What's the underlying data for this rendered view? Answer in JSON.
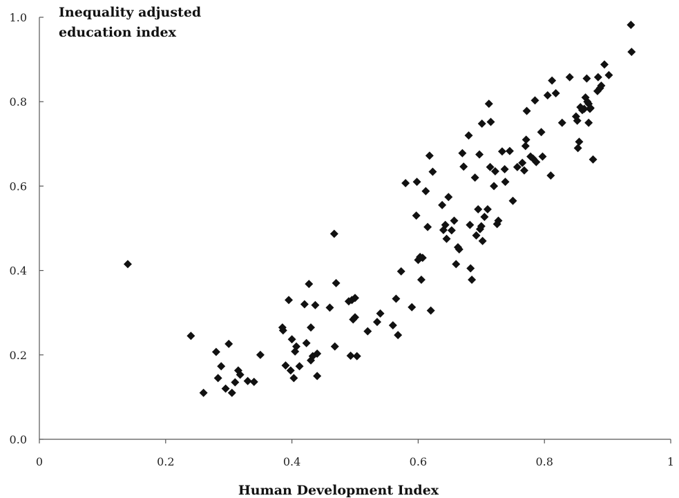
{
  "chart_data": {
    "type": "scatter",
    "title": "",
    "xlabel": "Human Development Index",
    "ylabel_lines": [
      "Inequality adjusted",
      "education index"
    ],
    "xlim": [
      0,
      1
    ],
    "ylim": [
      0,
      1
    ],
    "x_ticks": [
      0,
      0.2,
      0.4,
      0.6,
      0.8,
      1
    ],
    "x_tick_labels": [
      "0",
      "0.2",
      "0.4",
      "0.6",
      "0.8",
      "1"
    ],
    "y_ticks": [
      0,
      0.2,
      0.4,
      0.6,
      0.8,
      1
    ],
    "y_tick_labels": [
      "0.0",
      "0.2",
      "0.4",
      "0.6",
      "0.8",
      "1.0"
    ],
    "grid": false,
    "marker": "diamond",
    "marker_color": "#111111",
    "points": [
      [
        0.14,
        0.415
      ],
      [
        0.24,
        0.245
      ],
      [
        0.26,
        0.11
      ],
      [
        0.28,
        0.207
      ],
      [
        0.283,
        0.145
      ],
      [
        0.288,
        0.173
      ],
      [
        0.295,
        0.12
      ],
      [
        0.3,
        0.226
      ],
      [
        0.305,
        0.11
      ],
      [
        0.31,
        0.135
      ],
      [
        0.315,
        0.163
      ],
      [
        0.318,
        0.153
      ],
      [
        0.33,
        0.138
      ],
      [
        0.34,
        0.136
      ],
      [
        0.35,
        0.2
      ],
      [
        0.385,
        0.265
      ],
      [
        0.386,
        0.258
      ],
      [
        0.39,
        0.175
      ],
      [
        0.395,
        0.33
      ],
      [
        0.398,
        0.163
      ],
      [
        0.4,
        0.237
      ],
      [
        0.403,
        0.145
      ],
      [
        0.405,
        0.208
      ],
      [
        0.407,
        0.22
      ],
      [
        0.412,
        0.173
      ],
      [
        0.42,
        0.32
      ],
      [
        0.423,
        0.228
      ],
      [
        0.427,
        0.368
      ],
      [
        0.43,
        0.265
      ],
      [
        0.43,
        0.187
      ],
      [
        0.433,
        0.197
      ],
      [
        0.437,
        0.318
      ],
      [
        0.44,
        0.203
      ],
      [
        0.44,
        0.15
      ],
      [
        0.46,
        0.312
      ],
      [
        0.467,
        0.487
      ],
      [
        0.468,
        0.22
      ],
      [
        0.47,
        0.37
      ],
      [
        0.49,
        0.327
      ],
      [
        0.493,
        0.198
      ],
      [
        0.495,
        0.33
      ],
      [
        0.497,
        0.284
      ],
      [
        0.5,
        0.335
      ],
      [
        0.5,
        0.289
      ],
      [
        0.503,
        0.197
      ],
      [
        0.52,
        0.256
      ],
      [
        0.535,
        0.278
      ],
      [
        0.54,
        0.298
      ],
      [
        0.56,
        0.27
      ],
      [
        0.565,
        0.333
      ],
      [
        0.568,
        0.247
      ],
      [
        0.573,
        0.398
      ],
      [
        0.58,
        0.607
      ],
      [
        0.59,
        0.313
      ],
      [
        0.597,
        0.53
      ],
      [
        0.598,
        0.61
      ],
      [
        0.6,
        0.425
      ],
      [
        0.603,
        0.432
      ],
      [
        0.605,
        0.378
      ],
      [
        0.607,
        0.43
      ],
      [
        0.612,
        0.588
      ],
      [
        0.615,
        0.503
      ],
      [
        0.618,
        0.672
      ],
      [
        0.62,
        0.305
      ],
      [
        0.623,
        0.634
      ],
      [
        0.638,
        0.555
      ],
      [
        0.64,
        0.496
      ],
      [
        0.643,
        0.508
      ],
      [
        0.645,
        0.475
      ],
      [
        0.648,
        0.574
      ],
      [
        0.653,
        0.495
      ],
      [
        0.657,
        0.518
      ],
      [
        0.66,
        0.415
      ],
      [
        0.663,
        0.455
      ],
      [
        0.665,
        0.45
      ],
      [
        0.67,
        0.678
      ],
      [
        0.672,
        0.646
      ],
      [
        0.68,
        0.72
      ],
      [
        0.682,
        0.508
      ],
      [
        0.683,
        0.405
      ],
      [
        0.685,
        0.378
      ],
      [
        0.69,
        0.62
      ],
      [
        0.692,
        0.483
      ],
      [
        0.695,
        0.545
      ],
      [
        0.697,
        0.675
      ],
      [
        0.698,
        0.498
      ],
      [
        0.7,
        0.505
      ],
      [
        0.701,
        0.748
      ],
      [
        0.702,
        0.47
      ],
      [
        0.705,
        0.527
      ],
      [
        0.71,
        0.545
      ],
      [
        0.712,
        0.795
      ],
      [
        0.714,
        0.645
      ],
      [
        0.715,
        0.752
      ],
      [
        0.72,
        0.6
      ],
      [
        0.722,
        0.635
      ],
      [
        0.725,
        0.51
      ],
      [
        0.727,
        0.518
      ],
      [
        0.733,
        0.682
      ],
      [
        0.737,
        0.64
      ],
      [
        0.738,
        0.61
      ],
      [
        0.745,
        0.683
      ],
      [
        0.75,
        0.565
      ],
      [
        0.757,
        0.645
      ],
      [
        0.765,
        0.655
      ],
      [
        0.768,
        0.637
      ],
      [
        0.77,
        0.695
      ],
      [
        0.771,
        0.71
      ],
      [
        0.772,
        0.778
      ],
      [
        0.778,
        0.67
      ],
      [
        0.782,
        0.665
      ],
      [
        0.785,
        0.803
      ],
      [
        0.787,
        0.657
      ],
      [
        0.795,
        0.728
      ],
      [
        0.797,
        0.67
      ],
      [
        0.805,
        0.815
      ],
      [
        0.81,
        0.625
      ],
      [
        0.812,
        0.85
      ],
      [
        0.818,
        0.82
      ],
      [
        0.828,
        0.75
      ],
      [
        0.84,
        0.858
      ],
      [
        0.85,
        0.765
      ],
      [
        0.852,
        0.755
      ],
      [
        0.853,
        0.69
      ],
      [
        0.855,
        0.705
      ],
      [
        0.857,
        0.787
      ],
      [
        0.86,
        0.78
      ],
      [
        0.863,
        0.783
      ],
      [
        0.865,
        0.81
      ],
      [
        0.867,
        0.855
      ],
      [
        0.868,
        0.8
      ],
      [
        0.87,
        0.795
      ],
      [
        0.87,
        0.75
      ],
      [
        0.872,
        0.783
      ],
      [
        0.873,
        0.785
      ],
      [
        0.877,
        0.663
      ],
      [
        0.884,
        0.825
      ],
      [
        0.885,
        0.858
      ],
      [
        0.888,
        0.832
      ],
      [
        0.89,
        0.838
      ],
      [
        0.895,
        0.888
      ],
      [
        0.902,
        0.863
      ],
      [
        0.937,
        0.982
      ],
      [
        0.938,
        0.918
      ]
    ]
  }
}
